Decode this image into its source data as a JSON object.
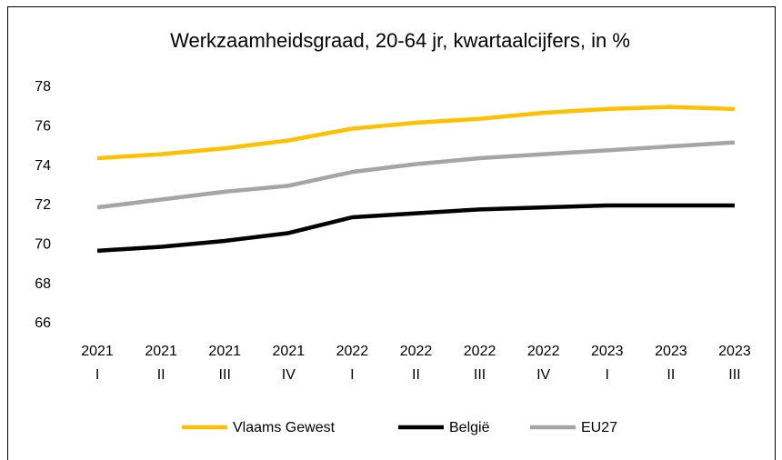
{
  "chart_data": {
    "type": "line",
    "title": "Werkzaamheidsgraad, 20-64 jr, kwartaalcijfers, in %",
    "categories": [
      [
        "2021",
        "I"
      ],
      [
        "2021",
        "II"
      ],
      [
        "2021",
        "III"
      ],
      [
        "2021",
        "IV"
      ],
      [
        "2022",
        "I"
      ],
      [
        "2022",
        "II"
      ],
      [
        "2022",
        "III"
      ],
      [
        "2022",
        "IV"
      ],
      [
        "2023",
        "I"
      ],
      [
        "2023",
        "II"
      ],
      [
        "2023",
        "III"
      ]
    ],
    "series": [
      {
        "name": "Vlaams Gewest",
        "color": "#ffc000",
        "values": [
          74.4,
          74.6,
          74.9,
          75.3,
          75.9,
          76.2,
          76.4,
          76.7,
          76.9,
          77.0,
          76.9
        ]
      },
      {
        "name": "België",
        "color": "#000000",
        "values": [
          69.7,
          69.9,
          70.2,
          70.6,
          71.4,
          71.6,
          71.8,
          71.9,
          72.0,
          72.0,
          72.0
        ]
      },
      {
        "name": "EU27",
        "color": "#a5a5a5",
        "values": [
          71.9,
          72.3,
          72.7,
          73.0,
          73.7,
          74.1,
          74.4,
          74.6,
          74.8,
          75.0,
          75.2
        ]
      }
    ],
    "ylim": [
      66,
      78
    ],
    "yticks": [
      66,
      68,
      70,
      72,
      74,
      76,
      78
    ],
    "grid": false,
    "legend": "bottom"
  }
}
